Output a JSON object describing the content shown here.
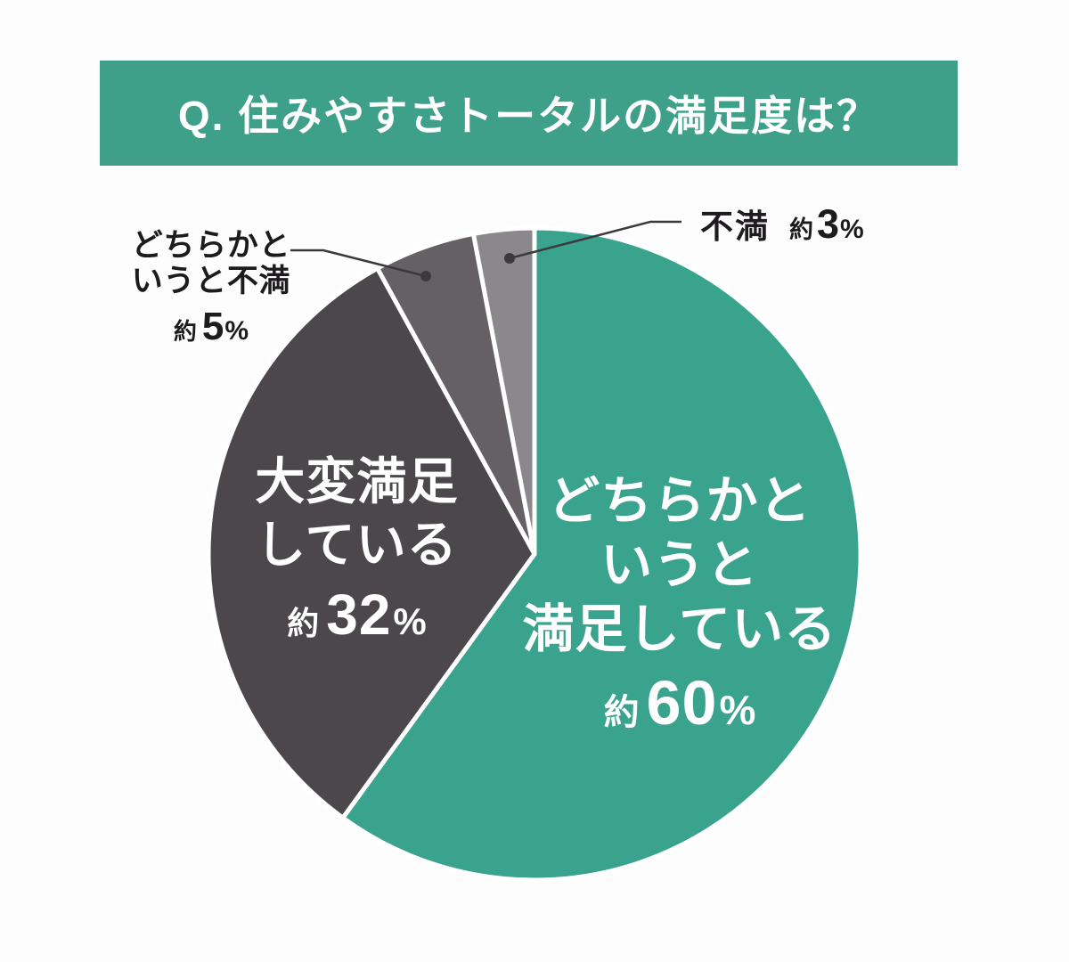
{
  "header": {
    "title": "Q. 住みやすさトータルの満足度は？"
  },
  "chart_data": {
    "type": "pie",
    "title": "Q. 住みやすさトータルの満足度は？",
    "direction": "clockwise",
    "start_angle_deg": 0,
    "total": 100,
    "separator_color": "#ffffff",
    "slices": [
      {
        "name": "somewhat-satisfied",
        "label": "どちらかというと満足している",
        "label_lines": [
          "どちらかと",
          "いうと",
          "満足している"
        ],
        "approx": "約",
        "percent_digits": "60",
        "percent_sign": "%",
        "value": 60,
        "color": "#39A38D",
        "label_placement": "inside"
      },
      {
        "name": "very-satisfied",
        "label": "大変満足している",
        "label_lines": [
          "大変満足",
          "している"
        ],
        "approx": "約",
        "percent_digits": "32",
        "percent_sign": "%",
        "value": 32,
        "color": "#4B474B",
        "label_placement": "inside"
      },
      {
        "name": "somewhat-dissatisfied",
        "label": "どちらかというと不満",
        "label_lines": [
          "どちらかと",
          "いうと不満"
        ],
        "approx": "約",
        "percent_digits": "5",
        "percent_sign": "%",
        "value": 5,
        "color": "#646064",
        "label_placement": "outside-left"
      },
      {
        "name": "dissatisfied",
        "label": "不満",
        "label_lines": [
          "不満"
        ],
        "approx": "約",
        "percent_digits": "3",
        "percent_sign": "%",
        "value": 3,
        "color": "#8B888C",
        "label_placement": "outside-right"
      }
    ],
    "colors": {
      "banner_bg": "#3FA08A",
      "banner_text": "#FFFFFF",
      "inside_label_text": "#FFFFFF",
      "outside_label_text": "#1D1B1D",
      "leader_line": "#3C393C"
    }
  }
}
